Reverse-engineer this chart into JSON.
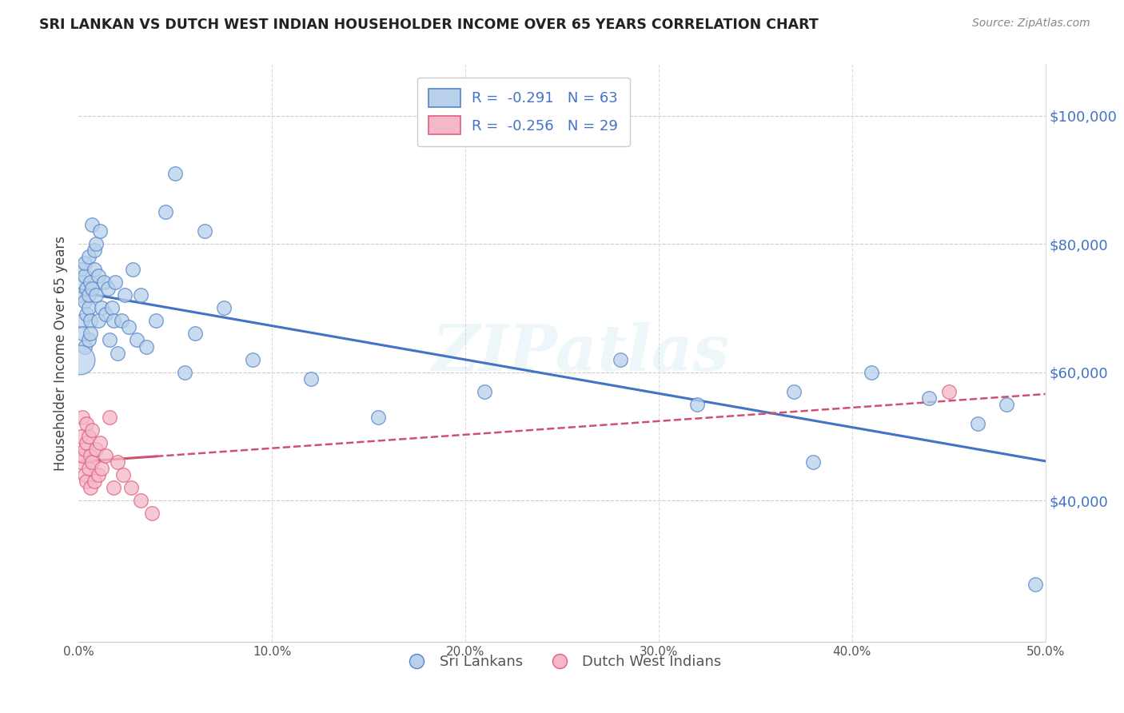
{
  "title": "SRI LANKAN VS DUTCH WEST INDIAN HOUSEHOLDER INCOME OVER 65 YEARS CORRELATION CHART",
  "source": "Source: ZipAtlas.com",
  "ylabel": "Householder Income Over 65 years",
  "legend_label1": "Sri Lankans",
  "legend_label2": "Dutch West Indians",
  "legend_r1": "-0.291",
  "legend_n1": "63",
  "legend_r2": "-0.256",
  "legend_n2": "29",
  "ytick_labels": [
    "$40,000",
    "$60,000",
    "$80,000",
    "$100,000"
  ],
  "ytick_values": [
    40000,
    60000,
    80000,
    100000
  ],
  "xlim": [
    0.0,
    0.5
  ],
  "ylim": [
    18000,
    108000
  ],
  "color_sri": "#b8d0ea",
  "color_sri_edge": "#5585c8",
  "color_dutch": "#f5b8c8",
  "color_dutch_edge": "#e06080",
  "color_sri_line": "#4472c4",
  "color_dutch_line": "#d05070",
  "watermark": "ZIPatlas",
  "sri_x": [
    0.001,
    0.001,
    0.002,
    0.002,
    0.002,
    0.003,
    0.003,
    0.003,
    0.003,
    0.004,
    0.004,
    0.005,
    0.005,
    0.005,
    0.005,
    0.006,
    0.006,
    0.006,
    0.007,
    0.007,
    0.008,
    0.008,
    0.009,
    0.009,
    0.01,
    0.01,
    0.011,
    0.012,
    0.013,
    0.014,
    0.015,
    0.016,
    0.017,
    0.018,
    0.019,
    0.02,
    0.022,
    0.024,
    0.026,
    0.028,
    0.03,
    0.032,
    0.035,
    0.04,
    0.045,
    0.05,
    0.055,
    0.06,
    0.065,
    0.075,
    0.09,
    0.12,
    0.155,
    0.21,
    0.28,
    0.32,
    0.37,
    0.38,
    0.41,
    0.44,
    0.465,
    0.48,
    0.495
  ],
  "sri_y": [
    72000,
    76000,
    68000,
    74000,
    66000,
    75000,
    71000,
    77000,
    64000,
    73000,
    69000,
    78000,
    65000,
    70000,
    72000,
    74000,
    68000,
    66000,
    83000,
    73000,
    76000,
    79000,
    72000,
    80000,
    68000,
    75000,
    82000,
    70000,
    74000,
    69000,
    73000,
    65000,
    70000,
    68000,
    74000,
    63000,
    68000,
    72000,
    67000,
    76000,
    65000,
    72000,
    64000,
    68000,
    85000,
    91000,
    60000,
    66000,
    82000,
    70000,
    62000,
    59000,
    53000,
    57000,
    62000,
    55000,
    57000,
    46000,
    60000,
    56000,
    52000,
    55000,
    27000
  ],
  "sri_sizes": [
    80,
    80,
    80,
    80,
    80,
    80,
    80,
    80,
    80,
    80,
    80,
    80,
    80,
    80,
    80,
    80,
    80,
    80,
    80,
    80,
    80,
    80,
    80,
    80,
    80,
    80,
    80,
    80,
    80,
    80,
    80,
    80,
    80,
    80,
    80,
    80,
    80,
    80,
    80,
    80,
    80,
    80,
    80,
    80,
    80,
    80,
    80,
    80,
    80,
    80,
    80,
    80,
    80,
    80,
    80,
    80,
    80,
    80,
    80,
    80,
    80,
    80,
    80
  ],
  "dutch_x": [
    0.001,
    0.001,
    0.002,
    0.002,
    0.003,
    0.003,
    0.004,
    0.004,
    0.004,
    0.005,
    0.005,
    0.006,
    0.006,
    0.007,
    0.007,
    0.008,
    0.009,
    0.01,
    0.011,
    0.012,
    0.014,
    0.016,
    0.018,
    0.02,
    0.023,
    0.027,
    0.032,
    0.038,
    0.45
  ],
  "dutch_y": [
    50000,
    46000,
    53000,
    47000,
    48000,
    44000,
    52000,
    49000,
    43000,
    50000,
    45000,
    47000,
    42000,
    51000,
    46000,
    43000,
    48000,
    44000,
    49000,
    45000,
    47000,
    53000,
    42000,
    46000,
    44000,
    42000,
    40000,
    38000,
    57000
  ],
  "xtick_vals": [
    0.0,
    0.1,
    0.2,
    0.3,
    0.4,
    0.5
  ],
  "xtick_labels": [
    "0.0%",
    "10.0%",
    "20.0%",
    "30.0%",
    "40.0%",
    "50.0%"
  ]
}
